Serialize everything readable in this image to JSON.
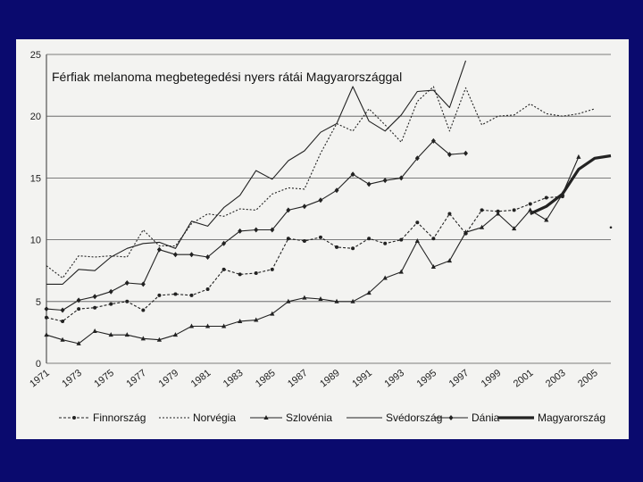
{
  "colors": {
    "background": "#0a0a6e",
    "paper": "#f3f3f1",
    "ink": "#1a1a1a",
    "grid": "#555555"
  },
  "chart_data": {
    "type": "line",
    "title": "Férfiak melanoma megbetegedési nyers rátái Magyarországgal",
    "xlabel": "",
    "ylabel": "",
    "xlim": [
      1971,
      2006
    ],
    "ylim": [
      0,
      25
    ],
    "yticks": [
      0,
      5,
      10,
      15,
      20,
      25
    ],
    "xticks": [
      "1971",
      "1973",
      "1975",
      "1977",
      "1979",
      "1981",
      "1983",
      "1985",
      "1987",
      "1989",
      "1991",
      "1993",
      "1995",
      "1997",
      "1999",
      "2001",
      "2003",
      "2005"
    ],
    "legend_position": "bottom",
    "series": [
      {
        "name": "Finnország",
        "style": "finn",
        "x": [
          1971,
          1972,
          1973,
          1974,
          1975,
          1976,
          1977,
          1978,
          1979,
          1980,
          1981,
          1982,
          1983,
          1984,
          1985,
          1986,
          1987,
          1988,
          1989,
          1990,
          1991,
          1992,
          1993,
          1994,
          1995,
          1996,
          1997,
          1998,
          1999,
          2000,
          2001,
          2002,
          2003
        ],
        "values": [
          3.7,
          3.4,
          4.4,
          4.5,
          4.8,
          5.0,
          4.3,
          5.5,
          5.6,
          5.5,
          6.0,
          7.6,
          7.2,
          7.3,
          7.6,
          10.1,
          9.9,
          10.2,
          9.4,
          9.3,
          10.1,
          9.7,
          10.0,
          11.4,
          10.1,
          12.1,
          10.5,
          12.4,
          12.3,
          12.4,
          12.9,
          13.4,
          13.5
        ]
      },
      {
        "name": "Norvégia",
        "style": "norv",
        "x": [
          1971,
          1972,
          1973,
          1974,
          1975,
          1976,
          1977,
          1978,
          1979,
          1980,
          1981,
          1982,
          1983,
          1984,
          1985,
          1986,
          1987,
          1988,
          1989,
          1990,
          1991,
          1992,
          1993,
          1994,
          1995,
          1996,
          1997,
          1998,
          1999,
          2000,
          2001,
          2002,
          2003,
          2004,
          2005
        ],
        "values": [
          7.9,
          6.9,
          8.7,
          8.6,
          8.7,
          8.6,
          10.8,
          9.5,
          9.5,
          11.3,
          12.1,
          11.9,
          12.5,
          12.4,
          13.7,
          14.2,
          14.1,
          17.0,
          19.4,
          18.8,
          20.6,
          19.3,
          17.9,
          21.2,
          22.4,
          18.8,
          22.3,
          19.3,
          20.0,
          20.1,
          21.0,
          20.2,
          20.0,
          20.2,
          20.6
        ]
      },
      {
        "name": "Szlovénia",
        "style": "szlo",
        "x": [
          1971,
          1972,
          1973,
          1974,
          1975,
          1976,
          1977,
          1978,
          1979,
          1980,
          1981,
          1982,
          1983,
          1984,
          1985,
          1986,
          1987,
          1988,
          1989,
          1990,
          1991,
          1992,
          1993,
          1994,
          1995,
          1996,
          1997,
          1998,
          1999,
          2000,
          2001,
          2002,
          2003,
          2004
        ],
        "values": [
          2.3,
          1.9,
          1.6,
          2.6,
          2.3,
          2.3,
          2.0,
          1.9,
          2.3,
          3.0,
          3.0,
          3.0,
          3.4,
          3.5,
          4.0,
          5.0,
          5.3,
          5.2,
          5.0,
          5.0,
          5.7,
          6.9,
          7.4,
          9.9,
          7.8,
          8.3,
          10.6,
          11.0,
          12.1,
          10.9,
          12.4,
          11.6,
          13.7,
          16.7
        ]
      },
      {
        "name": "Svédország",
        "style": "sved",
        "x": [
          1971,
          1972,
          1973,
          1974,
          1975,
          1976,
          1977,
          1978,
          1979,
          1980,
          1981,
          1982,
          1983,
          1984,
          1985,
          1986,
          1987,
          1988,
          1989,
          1990,
          1991,
          1992,
          1993,
          1994,
          1995,
          1996,
          1997
        ],
        "values": [
          6.4,
          6.4,
          7.6,
          7.5,
          8.6,
          9.3,
          9.7,
          9.8,
          9.3,
          11.5,
          11.1,
          12.6,
          13.6,
          15.6,
          14.9,
          16.4,
          17.2,
          18.7,
          19.4,
          22.4,
          19.6,
          18.8,
          20.1,
          22.0,
          22.1,
          20.7,
          24.5
        ]
      },
      {
        "name": "Dánia",
        "style": "dania",
        "x": [
          1971,
          1972,
          1973,
          1974,
          1975,
          1976,
          1977,
          1978,
          1979,
          1980,
          1981,
          1982,
          1983,
          1984,
          1985,
          1986,
          1987,
          1988,
          1989,
          1990,
          1991,
          1992,
          1993,
          1994,
          1995,
          1996,
          1997
        ],
        "values": [
          4.4,
          4.3,
          5.1,
          5.4,
          5.8,
          6.5,
          6.4,
          9.2,
          8.8,
          8.8,
          8.6,
          9.7,
          10.7,
          10.8,
          10.8,
          12.4,
          12.7,
          13.2,
          14.0,
          15.3,
          14.5,
          14.8,
          15.0,
          16.6,
          18.0,
          16.9,
          17.0
        ]
      },
      {
        "name": "Magyarország",
        "style": "hun",
        "x": [
          2001,
          2002,
          2003,
          2004,
          2005,
          2006
        ],
        "values": [
          12.1,
          12.7,
          13.7,
          15.7,
          16.6,
          16.8
        ]
      }
    ],
    "annotations": [
      {
        "text": "·",
        "x": 2006,
        "y": 11
      }
    ]
  }
}
